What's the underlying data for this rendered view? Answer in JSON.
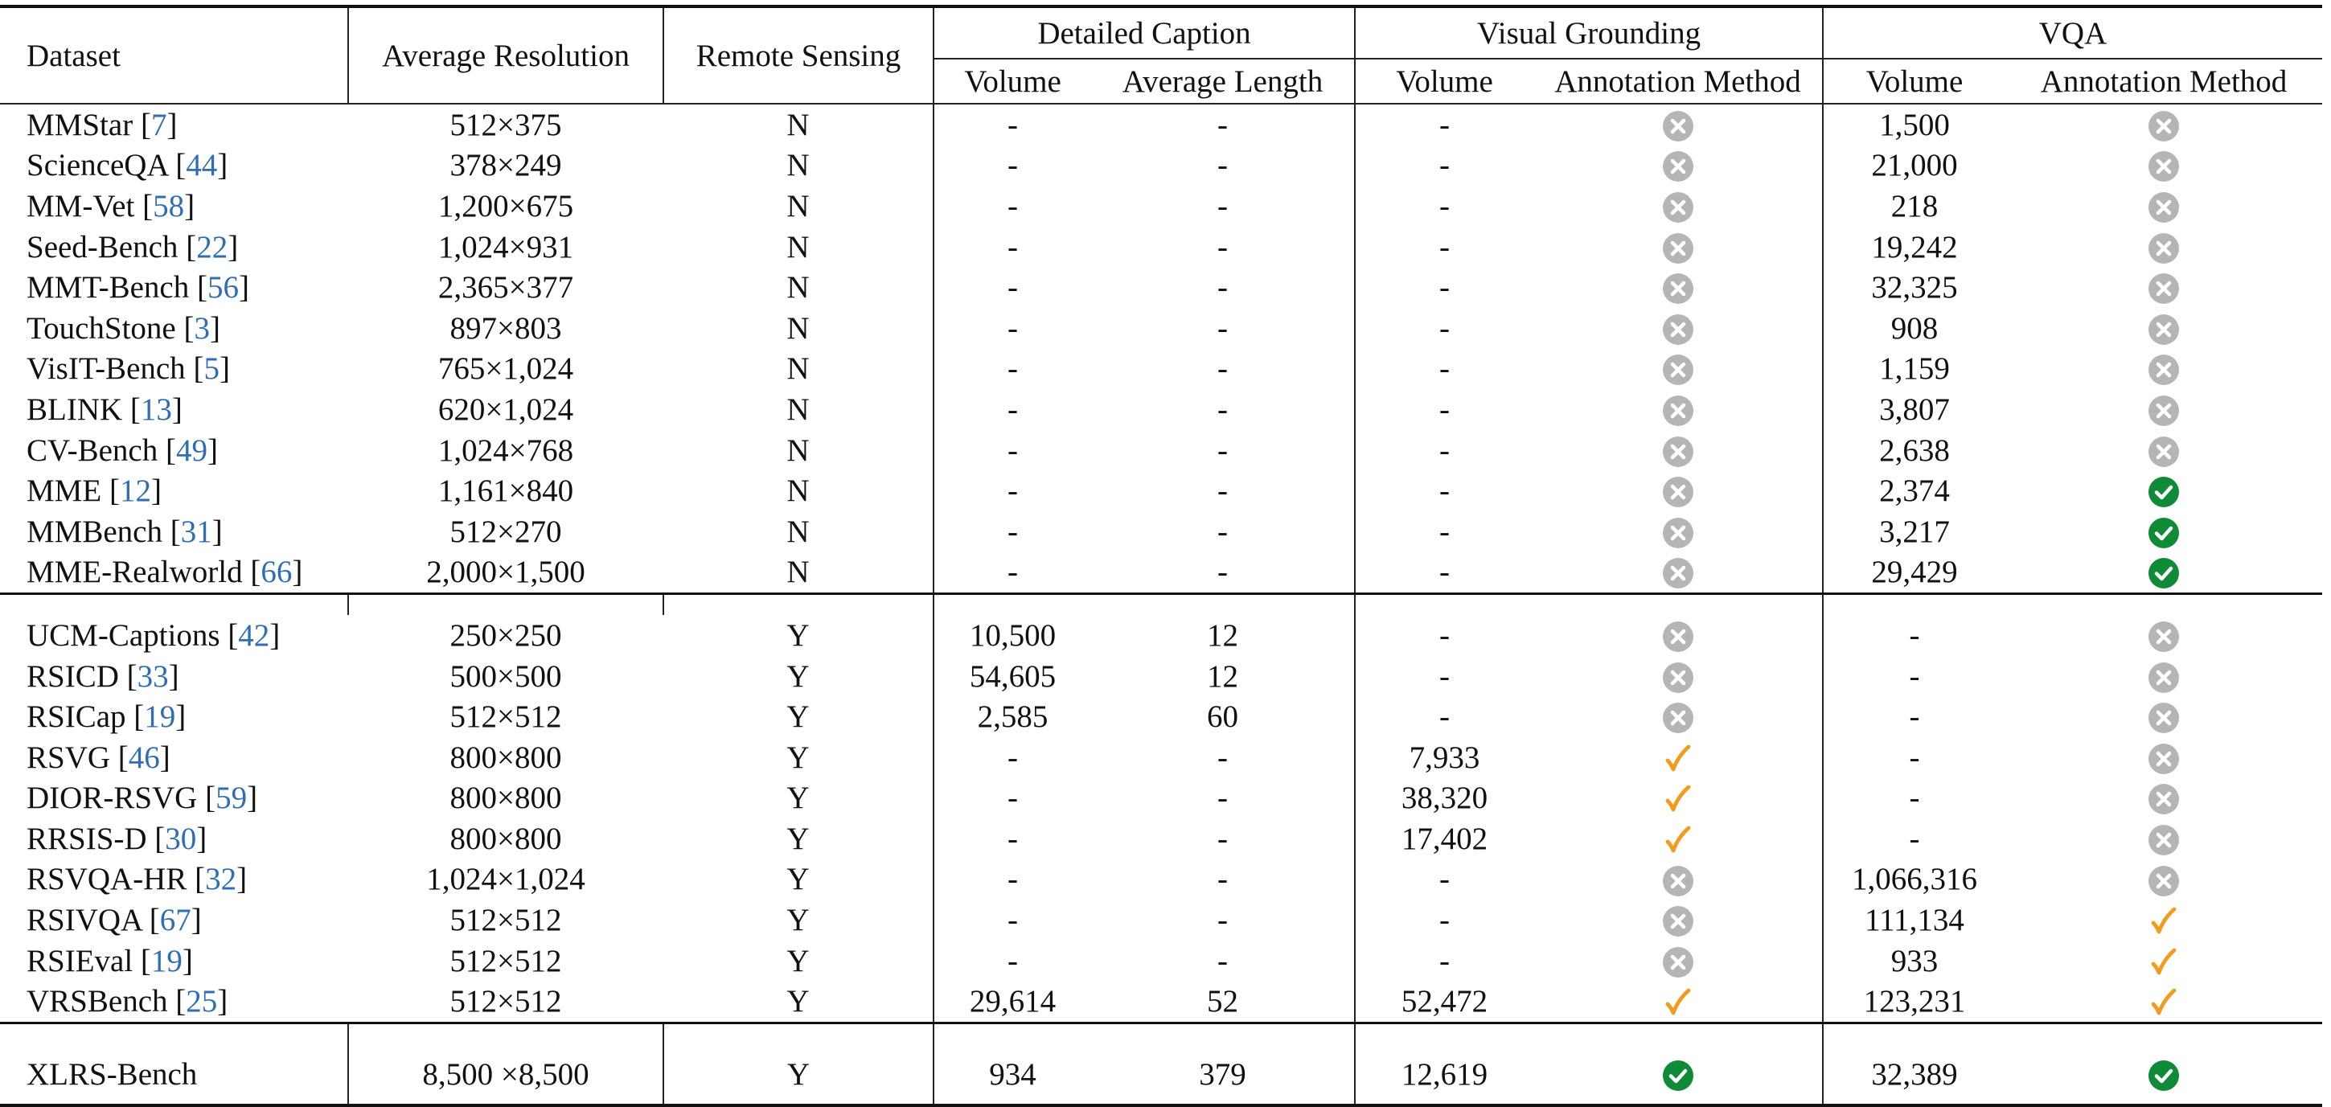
{
  "headers": {
    "dataset": "Dataset",
    "avg_resolution": "Average Resolution",
    "remote_sensing": "Remote Sensing",
    "group_caption": "Detailed Caption",
    "group_grounding": "Visual Grounding",
    "group_vqa": "VQA",
    "cap_volume": "Volume",
    "cap_avg_length": "Average Length",
    "vg_volume": "Volume",
    "vg_annotation": "Annotation Method",
    "vqa_volume": "Volume",
    "vqa_annotation": "Annotation Method"
  },
  "icon_legend": {
    "x-circle-icon": "grey circled cross",
    "check-circle-icon": "green circled check",
    "checkmark-icon": "orange check mark"
  },
  "colors": {
    "citation": "#2f6eb5",
    "grey_icon": "#b5b5b5",
    "green_icon": "#0f8a36",
    "orange_icon": "#f29b1d"
  },
  "groups": [
    {
      "rows": [
        {
          "name": "MMStar",
          "cite": "7",
          "res": "512×375",
          "rs": "N",
          "cap_vol": "-",
          "cap_len": "-",
          "vg_vol": "-",
          "vg_ann": "x-circle-icon",
          "vqa_vol": "1,500",
          "vqa_ann": "x-circle-icon"
        },
        {
          "name": "ScienceQA",
          "cite": "44",
          "res": "378×249",
          "rs": "N",
          "cap_vol": "-",
          "cap_len": "-",
          "vg_vol": "-",
          "vg_ann": "x-circle-icon",
          "vqa_vol": "21,000",
          "vqa_ann": "x-circle-icon"
        },
        {
          "name": "MM-Vet",
          "cite": "58",
          "res": "1,200×675",
          "rs": "N",
          "cap_vol": "-",
          "cap_len": "-",
          "vg_vol": "-",
          "vg_ann": "x-circle-icon",
          "vqa_vol": "218",
          "vqa_ann": "x-circle-icon"
        },
        {
          "name": "Seed-Bench",
          "cite": "22",
          "res": "1,024×931",
          "rs": "N",
          "cap_vol": "-",
          "cap_len": "-",
          "vg_vol": "-",
          "vg_ann": "x-circle-icon",
          "vqa_vol": "19,242",
          "vqa_ann": "x-circle-icon"
        },
        {
          "name": "MMT-Bench",
          "cite": "56",
          "res": "2,365×377",
          "rs": "N",
          "cap_vol": "-",
          "cap_len": "-",
          "vg_vol": "-",
          "vg_ann": "x-circle-icon",
          "vqa_vol": "32,325",
          "vqa_ann": "x-circle-icon"
        },
        {
          "name": "TouchStone",
          "cite": "3",
          "res": "897×803",
          "rs": "N",
          "cap_vol": "-",
          "cap_len": "-",
          "vg_vol": "-",
          "vg_ann": "x-circle-icon",
          "vqa_vol": "908",
          "vqa_ann": "x-circle-icon"
        },
        {
          "name": "VisIT-Bench",
          "cite": "5",
          "res": "765×1,024",
          "rs": "N",
          "cap_vol": "-",
          "cap_len": "-",
          "vg_vol": "-",
          "vg_ann": "x-circle-icon",
          "vqa_vol": "1,159",
          "vqa_ann": "x-circle-icon"
        },
        {
          "name": "BLINK",
          "cite": "13",
          "res": "620×1,024",
          "rs": "N",
          "cap_vol": "-",
          "cap_len": "-",
          "vg_vol": "-",
          "vg_ann": "x-circle-icon",
          "vqa_vol": "3,807",
          "vqa_ann": "x-circle-icon"
        },
        {
          "name": "CV-Bench",
          "cite": "49",
          "res": "1,024×768",
          "rs": "N",
          "cap_vol": "-",
          "cap_len": "-",
          "vg_vol": "-",
          "vg_ann": "x-circle-icon",
          "vqa_vol": "2,638",
          "vqa_ann": "x-circle-icon"
        },
        {
          "name": "MME",
          "cite": "12",
          "res": "1,161×840",
          "rs": "N",
          "cap_vol": "-",
          "cap_len": "-",
          "vg_vol": "-",
          "vg_ann": "x-circle-icon",
          "vqa_vol": "2,374",
          "vqa_ann": "check-circle-icon"
        },
        {
          "name": "MMBench",
          "cite": "31",
          "res": "512×270",
          "rs": "N",
          "cap_vol": "-",
          "cap_len": "-",
          "vg_vol": "-",
          "vg_ann": "x-circle-icon",
          "vqa_vol": "3,217",
          "vqa_ann": "check-circle-icon"
        },
        {
          "name": "MME-Realworld",
          "cite": "66",
          "res": "2,000×1,500",
          "rs": "N",
          "cap_vol": "-",
          "cap_len": "-",
          "vg_vol": "-",
          "vg_ann": "x-circle-icon",
          "vqa_vol": "29,429",
          "vqa_ann": "check-circle-icon"
        }
      ]
    },
    {
      "rows": [
        {
          "name": "UCM-Captions",
          "cite": "42",
          "res": "250×250",
          "rs": "Y",
          "cap_vol": "10,500",
          "cap_len": "12",
          "vg_vol": "-",
          "vg_ann": "x-circle-icon",
          "vqa_vol": "-",
          "vqa_ann": "x-circle-icon"
        },
        {
          "name": "RSICD",
          "cite": "33",
          "res": "500×500",
          "rs": "Y",
          "cap_vol": "54,605",
          "cap_len": "12",
          "vg_vol": "-",
          "vg_ann": "x-circle-icon",
          "vqa_vol": "-",
          "vqa_ann": "x-circle-icon"
        },
        {
          "name": "RSICap",
          "cite": "19",
          "res": "512×512",
          "rs": "Y",
          "cap_vol": "2,585",
          "cap_len": "60",
          "vg_vol": "-",
          "vg_ann": "x-circle-icon",
          "vqa_vol": "-",
          "vqa_ann": "x-circle-icon"
        },
        {
          "name": "RSVG",
          "cite": "46",
          "res": "800×800",
          "rs": "Y",
          "cap_vol": "-",
          "cap_len": "-",
          "vg_vol": "7,933",
          "vg_ann": "checkmark-icon",
          "vqa_vol": "-",
          "vqa_ann": "x-circle-icon"
        },
        {
          "name": "DIOR-RSVG",
          "cite": "59",
          "res": "800×800",
          "rs": "Y",
          "cap_vol": "-",
          "cap_len": "-",
          "vg_vol": "38,320",
          "vg_ann": "checkmark-icon",
          "vqa_vol": "-",
          "vqa_ann": "x-circle-icon"
        },
        {
          "name": "RRSIS-D",
          "cite": "30",
          "res": "800×800",
          "rs": "Y",
          "cap_vol": "-",
          "cap_len": "-",
          "vg_vol": "17,402",
          "vg_ann": "checkmark-icon",
          "vqa_vol": "-",
          "vqa_ann": "x-circle-icon"
        },
        {
          "name": "RSVQA-HR",
          "cite": "32",
          "res": "1,024×1,024",
          "rs": "Y",
          "cap_vol": "-",
          "cap_len": "-",
          "vg_vol": "-",
          "vg_ann": "x-circle-icon",
          "vqa_vol": "1,066,316",
          "vqa_ann": "x-circle-icon"
        },
        {
          "name": "RSIVQA",
          "cite": "67",
          "res": "512×512",
          "rs": "Y",
          "cap_vol": "-",
          "cap_len": "-",
          "vg_vol": "-",
          "vg_ann": "x-circle-icon",
          "vqa_vol": "111,134",
          "vqa_ann": "checkmark-icon"
        },
        {
          "name": "RSIEval",
          "cite": "19",
          "res": "512×512",
          "rs": "Y",
          "cap_vol": "-",
          "cap_len": "-",
          "vg_vol": "-",
          "vg_ann": "x-circle-icon",
          "vqa_vol": "933",
          "vqa_ann": "checkmark-icon"
        },
        {
          "name": "VRSBench",
          "cite": "25",
          "res": "512×512",
          "rs": "Y",
          "cap_vol": "29,614",
          "cap_len": "52",
          "vg_vol": "52,472",
          "vg_ann": "checkmark-icon",
          "vqa_vol": "123,231",
          "vqa_ann": "checkmark-icon"
        }
      ]
    },
    {
      "rows": [
        {
          "name": "XLRS-Bench",
          "cite": "",
          "res": "8,500 ×8,500",
          "rs": "Y",
          "cap_vol": "934",
          "cap_len": "379",
          "vg_vol": "12,619",
          "vg_ann": "check-circle-icon",
          "vqa_vol": "32,389",
          "vqa_ann": "check-circle-icon"
        }
      ]
    }
  ]
}
